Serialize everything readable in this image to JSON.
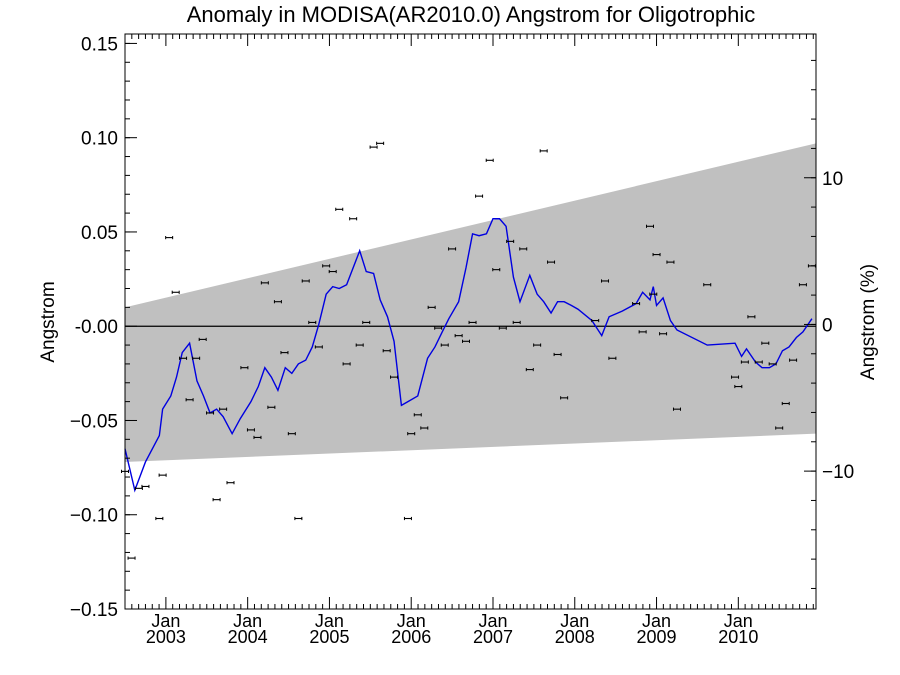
{
  "chart_data": {
    "type": "scatter",
    "title": "Anomaly in MODISA(AR2010.0) Angstrom for Oligotrophic",
    "ylabel": "Angstrom",
    "y2label": "Angstrom (%)",
    "xlim": [
      2002.5,
      2010.95
    ],
    "ylim": [
      -0.15,
      0.155
    ],
    "y2lim": [
      -19.4,
      19.8
    ],
    "yticks": [
      0.15,
      0.1,
      0.05,
      0.0,
      -0.05,
      -0.1,
      -0.15
    ],
    "ytick_labels": [
      "0.15",
      "0.10",
      "0.05",
      "-0.00",
      "−0.05",
      "−0.10",
      "−0.15"
    ],
    "y2ticks": [
      10,
      0,
      -10
    ],
    "y2tick_labels": [
      "10",
      "0",
      "−10"
    ],
    "xticks": [
      {
        "x": 2003.0,
        "month": "Jan",
        "year": "2003"
      },
      {
        "x": 2004.0,
        "month": "Jan",
        "year": "2004"
      },
      {
        "x": 2005.0,
        "month": "Jan",
        "year": "2005"
      },
      {
        "x": 2006.0,
        "month": "Jan",
        "year": "2006"
      },
      {
        "x": 2007.0,
        "month": "Jan",
        "year": "2007"
      },
      {
        "x": 2008.0,
        "month": "Jan",
        "year": "2008"
      },
      {
        "x": 2009.0,
        "month": "Jan",
        "year": "2009"
      },
      {
        "x": 2010.0,
        "month": "Jan",
        "year": "2010"
      }
    ],
    "zero_line": 0,
    "band": {
      "upper": [
        [
          2002.5,
          0.01
        ],
        [
          2010.95,
          0.097
        ]
      ],
      "lower": [
        [
          2002.5,
          -0.072
        ],
        [
          2010.95,
          -0.057
        ]
      ],
      "color": "#c0c0c0"
    },
    "series": [
      {
        "kind": "points",
        "color": "#000000",
        "points": [
          [
            2002.5,
            -0.077
          ],
          [
            2002.58,
            -0.123
          ],
          [
            2002.67,
            -0.086
          ],
          [
            2002.75,
            -0.085
          ],
          [
            2002.92,
            -0.102
          ],
          [
            2002.96,
            -0.079
          ],
          [
            2003.04,
            0.047
          ],
          [
            2003.12,
            0.018
          ],
          [
            2003.21,
            -0.017
          ],
          [
            2003.29,
            -0.039
          ],
          [
            2003.37,
            -0.017
          ],
          [
            2003.45,
            -0.007
          ],
          [
            2003.54,
            -0.046
          ],
          [
            2003.62,
            -0.092
          ],
          [
            2003.7,
            -0.044
          ],
          [
            2003.79,
            -0.083
          ],
          [
            2003.96,
            -0.022
          ],
          [
            2004.04,
            -0.055
          ],
          [
            2004.12,
            -0.059
          ],
          [
            2004.21,
            0.023
          ],
          [
            2004.29,
            -0.043
          ],
          [
            2004.37,
            0.013
          ],
          [
            2004.45,
            -0.014
          ],
          [
            2004.54,
            -0.057
          ],
          [
            2004.62,
            -0.102
          ],
          [
            2004.71,
            0.024
          ],
          [
            2004.79,
            0.002
          ],
          [
            2004.87,
            -0.011
          ],
          [
            2004.96,
            0.032
          ],
          [
            2005.04,
            0.029
          ],
          [
            2005.12,
            0.062
          ],
          [
            2005.21,
            -0.02
          ],
          [
            2005.29,
            0.057
          ],
          [
            2005.37,
            -0.01
          ],
          [
            2005.45,
            0.002
          ],
          [
            2005.54,
            0.095
          ],
          [
            2005.62,
            0.097
          ],
          [
            2005.7,
            -0.013
          ],
          [
            2005.79,
            -0.027
          ],
          [
            2005.96,
            -0.102
          ],
          [
            2006.0,
            -0.057
          ],
          [
            2006.08,
            -0.047
          ],
          [
            2006.16,
            -0.054
          ],
          [
            2006.25,
            0.01
          ],
          [
            2006.33,
            -0.001
          ],
          [
            2006.41,
            -0.01
          ],
          [
            2006.5,
            0.041
          ],
          [
            2006.58,
            -0.005
          ],
          [
            2006.67,
            -0.008
          ],
          [
            2006.75,
            0.002
          ],
          [
            2006.83,
            0.069
          ],
          [
            2006.96,
            0.088
          ],
          [
            2007.04,
            0.03
          ],
          [
            2007.12,
            -0.001
          ],
          [
            2007.21,
            0.045
          ],
          [
            2007.29,
            0.002
          ],
          [
            2007.37,
            0.041
          ],
          [
            2007.45,
            -0.023
          ],
          [
            2007.54,
            -0.01
          ],
          [
            2007.62,
            0.093
          ],
          [
            2007.71,
            0.034
          ],
          [
            2007.79,
            -0.015
          ],
          [
            2007.87,
            -0.038
          ],
          [
            2008.25,
            0.003
          ],
          [
            2008.37,
            0.024
          ],
          [
            2008.46,
            -0.017
          ],
          [
            2008.75,
            0.012
          ],
          [
            2008.83,
            -0.003
          ],
          [
            2008.92,
            0.053
          ],
          [
            2008.96,
            0.017
          ],
          [
            2009.0,
            0.038
          ],
          [
            2009.08,
            -0.004
          ],
          [
            2009.17,
            0.034
          ],
          [
            2009.25,
            -0.044
          ],
          [
            2009.62,
            0.022
          ],
          [
            2009.96,
            -0.027
          ],
          [
            2010.0,
            -0.032
          ],
          [
            2010.08,
            -0.019
          ],
          [
            2010.16,
            0.005
          ],
          [
            2010.25,
            -0.019
          ],
          [
            2010.33,
            -0.009
          ],
          [
            2010.42,
            -0.02
          ],
          [
            2010.5,
            -0.054
          ],
          [
            2010.58,
            -0.041
          ],
          [
            2010.67,
            -0.018
          ],
          [
            2010.79,
            0.022
          ],
          [
            2010.9,
            0.032
          ]
        ]
      },
      {
        "kind": "line",
        "color": "#0000e0",
        "points": [
          [
            2002.5,
            -0.065
          ],
          [
            2002.62,
            -0.087
          ],
          [
            2002.75,
            -0.072
          ],
          [
            2002.92,
            -0.058
          ],
          [
            2002.96,
            -0.044
          ],
          [
            2003.06,
            -0.037
          ],
          [
            2003.13,
            -0.027
          ],
          [
            2003.2,
            -0.014
          ],
          [
            2003.29,
            -0.009
          ],
          [
            2003.38,
            -0.029
          ],
          [
            2003.46,
            -0.037
          ],
          [
            2003.54,
            -0.046
          ],
          [
            2003.62,
            -0.044
          ],
          [
            2003.7,
            -0.048
          ],
          [
            2003.81,
            -0.057
          ],
          [
            2003.91,
            -0.049
          ],
          [
            2004.04,
            -0.04
          ],
          [
            2004.13,
            -0.032
          ],
          [
            2004.21,
            -0.022
          ],
          [
            2004.29,
            -0.027
          ],
          [
            2004.37,
            -0.034
          ],
          [
            2004.46,
            -0.022
          ],
          [
            2004.54,
            -0.025
          ],
          [
            2004.62,
            -0.02
          ],
          [
            2004.71,
            -0.018
          ],
          [
            2004.79,
            -0.011
          ],
          [
            2004.87,
            0.001
          ],
          [
            2004.96,
            0.017
          ],
          [
            2005.04,
            0.021
          ],
          [
            2005.12,
            0.02
          ],
          [
            2005.21,
            0.022
          ],
          [
            2005.29,
            0.031
          ],
          [
            2005.37,
            0.04
          ],
          [
            2005.45,
            0.029
          ],
          [
            2005.54,
            0.028
          ],
          [
            2005.62,
            0.014
          ],
          [
            2005.71,
            0.005
          ],
          [
            2005.79,
            -0.008
          ],
          [
            2005.88,
            -0.042
          ],
          [
            2005.96,
            -0.04
          ],
          [
            2006.08,
            -0.037
          ],
          [
            2006.2,
            -0.017
          ],
          [
            2006.29,
            -0.011
          ],
          [
            2006.38,
            -0.003
          ],
          [
            2006.46,
            0.004
          ],
          [
            2006.58,
            0.013
          ],
          [
            2006.67,
            0.031
          ],
          [
            2006.75,
            0.049
          ],
          [
            2006.83,
            0.048
          ],
          [
            2006.92,
            0.049
          ],
          [
            2007.0,
            0.057
          ],
          [
            2007.08,
            0.057
          ],
          [
            2007.16,
            0.053
          ],
          [
            2007.25,
            0.026
          ],
          [
            2007.33,
            0.013
          ],
          [
            2007.45,
            0.027
          ],
          [
            2007.54,
            0.017
          ],
          [
            2007.62,
            0.013
          ],
          [
            2007.71,
            0.007
          ],
          [
            2007.79,
            0.013
          ],
          [
            2007.87,
            0.013
          ],
          [
            2007.96,
            0.011
          ],
          [
            2008.04,
            0.009
          ],
          [
            2008.21,
            0.003
          ],
          [
            2008.33,
            -0.005
          ],
          [
            2008.42,
            0.005
          ],
          [
            2008.58,
            0.008
          ],
          [
            2008.75,
            0.012
          ],
          [
            2008.83,
            0.018
          ],
          [
            2008.92,
            0.014
          ],
          [
            2008.96,
            0.021
          ],
          [
            2009.0,
            0.011
          ],
          [
            2009.08,
            0.015
          ],
          [
            2009.17,
            0.003
          ],
          [
            2009.25,
            -0.002
          ],
          [
            2009.62,
            -0.01
          ],
          [
            2009.96,
            -0.009
          ],
          [
            2010.04,
            -0.016
          ],
          [
            2010.1,
            -0.012
          ],
          [
            2010.21,
            -0.019
          ],
          [
            2010.29,
            -0.022
          ],
          [
            2010.38,
            -0.022
          ],
          [
            2010.46,
            -0.02
          ],
          [
            2010.54,
            -0.013
          ],
          [
            2010.62,
            -0.011
          ],
          [
            2010.71,
            -0.006
          ],
          [
            2010.79,
            -0.003
          ],
          [
            2010.9,
            0.004
          ]
        ]
      }
    ]
  }
}
